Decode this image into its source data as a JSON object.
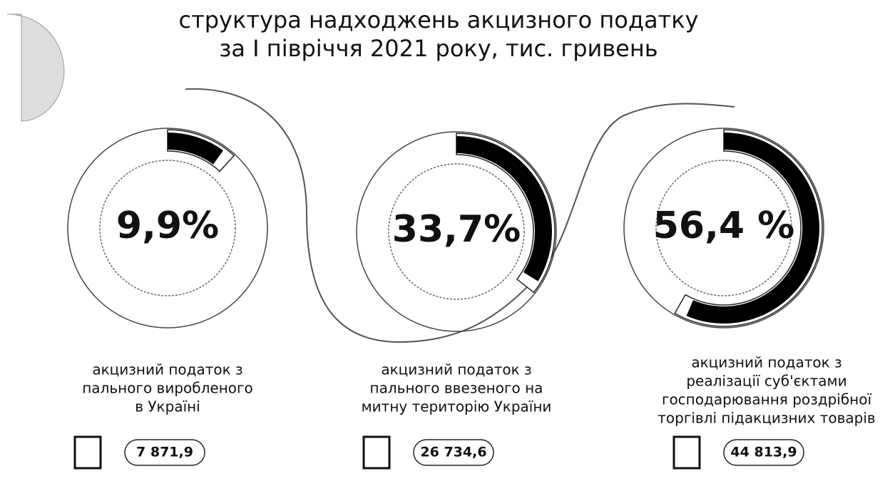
{
  "chart_data": {
    "type": "donut",
    "title": [
      "структура надходжень акцизного податку",
      "за І півріччя 2021 року, тис. гривень"
    ],
    "categories": [
      [
        "акцизний податок з",
        "пального виробленого",
        "в Україні"
      ],
      [
        "акцизний податок з",
        "пального ввезеного на",
        "митну територію України"
      ],
      [
        "акцизний податок з",
        "реалізації суб'єктами",
        "господарювання роздрібної",
        "торгівлі підакцизних товарів"
      ]
    ],
    "values": [
      9.9,
      33.7,
      56.4
    ],
    "value_labels": [
      "9,9%",
      "33,7%",
      "56,4 %"
    ],
    "ylim": [
      0,
      100
    ],
    "amounts": [
      7871.9,
      26734.6,
      44813.9
    ],
    "amount_labels": [
      "7 871,9",
      "26 734,6",
      "44 813,9"
    ],
    "color": "#000000"
  }
}
